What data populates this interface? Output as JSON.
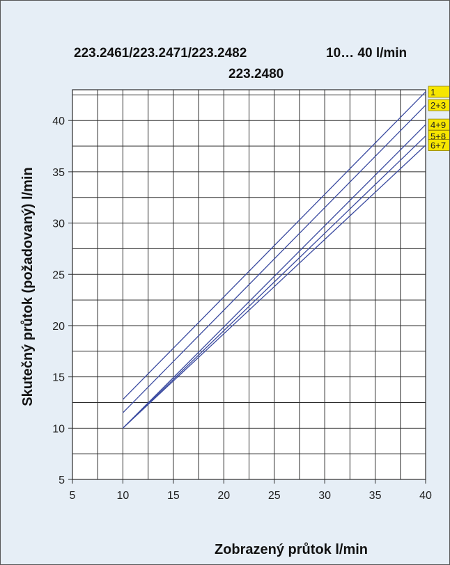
{
  "chart_data": {
    "type": "line",
    "title_line1": "223.2461/223.2471/223.2482",
    "title_range": "10… 40 l/min",
    "title_line2": "223.2480",
    "xlabel": "Zobrazený průtok   l/min",
    "ylabel": "Skutečný průtok (požadovaný)    l/min",
    "xlim": [
      5,
      40
    ],
    "ylim": [
      5,
      43
    ],
    "x_ticks": [
      5,
      10,
      15,
      20,
      25,
      30,
      35,
      40
    ],
    "y_ticks": [
      5,
      10,
      15,
      20,
      25,
      30,
      35,
      40
    ],
    "grid": true,
    "legend_position": "right",
    "series": [
      {
        "name": "1",
        "x": [
          10,
          40
        ],
        "y": [
          12.8,
          42.8
        ]
      },
      {
        "name": "2+3",
        "x": [
          10,
          40
        ],
        "y": [
          11.5,
          41.5
        ]
      },
      {
        "name": "4+9",
        "x": [
          10,
          40
        ],
        "y": [
          10.0,
          39.6
        ]
      },
      {
        "name": "5+8",
        "x": [
          10,
          40
        ],
        "y": [
          10.0,
          38.5
        ]
      },
      {
        "name": "6+7",
        "x": [
          10,
          40
        ],
        "y": [
          10.0,
          37.6
        ]
      }
    ],
    "colors": {
      "line": "#3a4aa0",
      "grid": "#2b2b2b",
      "legend_fill": "#f7e600",
      "legend_stroke": "#8a7a00",
      "background": "#e6eef6",
      "plot_background": "#ffffff"
    }
  }
}
